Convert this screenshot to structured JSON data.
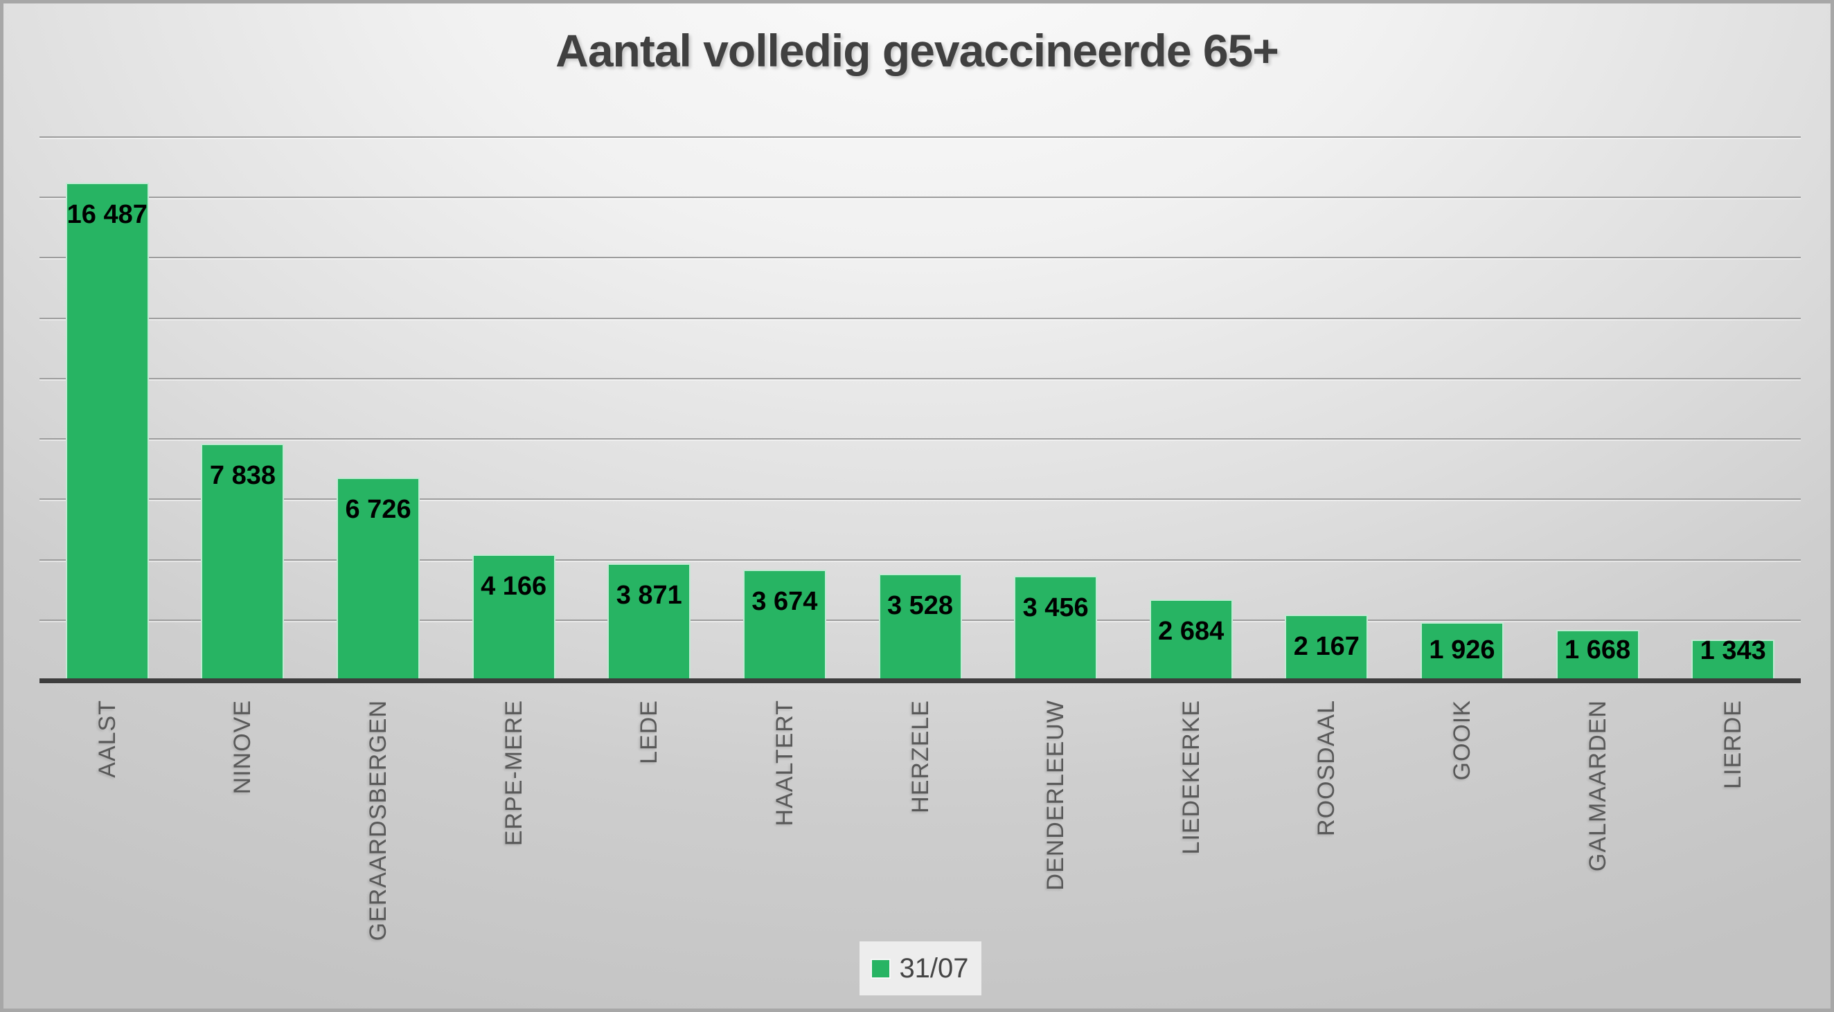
{
  "title": "Aantal volledig gevaccineerde 65+",
  "legend": {
    "label": "31/07"
  },
  "colors": {
    "bar": "#27b463",
    "bar_outline": "#ffffff",
    "title_text": "#404040",
    "category_text": "#595959",
    "value_text": "#000000",
    "gridline": "#9d9d9d",
    "axis_line": "#3d3d3d",
    "legend_bg": "#ededed",
    "background_light": "#fbfbfb",
    "background_dark": "#c3c3c3"
  },
  "chart_data": {
    "type": "bar",
    "title": "Aantal volledig gevaccineerde 65+",
    "categories": [
      "AALST",
      "NINOVE",
      "GERAARDSBERGEN",
      "ERPE-MERE",
      "LEDE",
      "HAALTERT",
      "HERZELE",
      "DENDERLEEUW",
      "LIEDEKERKE",
      "ROOSDAAL",
      "GOOIK",
      "GALMAARDEN",
      "LIERDE"
    ],
    "values": [
      16487,
      7838,
      6726,
      4166,
      3871,
      3674,
      3528,
      3456,
      2684,
      2167,
      1926,
      1668,
      1343
    ],
    "value_labels": [
      "16 487",
      "7 838",
      "6 726",
      "4 166",
      "3 871",
      "3 674",
      "3 528",
      "3 456",
      "2 684",
      "2 167",
      "1 926",
      "1 668",
      "1 343"
    ],
    "series": [
      {
        "name": "31/07",
        "values": [
          16487,
          7838,
          6726,
          4166,
          3871,
          3674,
          3528,
          3456,
          2684,
          2167,
          1926,
          1668,
          1343
        ]
      }
    ],
    "xlabel": "",
    "ylabel": "",
    "ylim": [
      0,
      18000
    ],
    "gridline_step": 2000,
    "grid": true,
    "legend_entries": [
      "31/07"
    ],
    "legend_position": "bottom",
    "value_label_position": "inside-end",
    "category_label_rotation_deg": -90
  }
}
